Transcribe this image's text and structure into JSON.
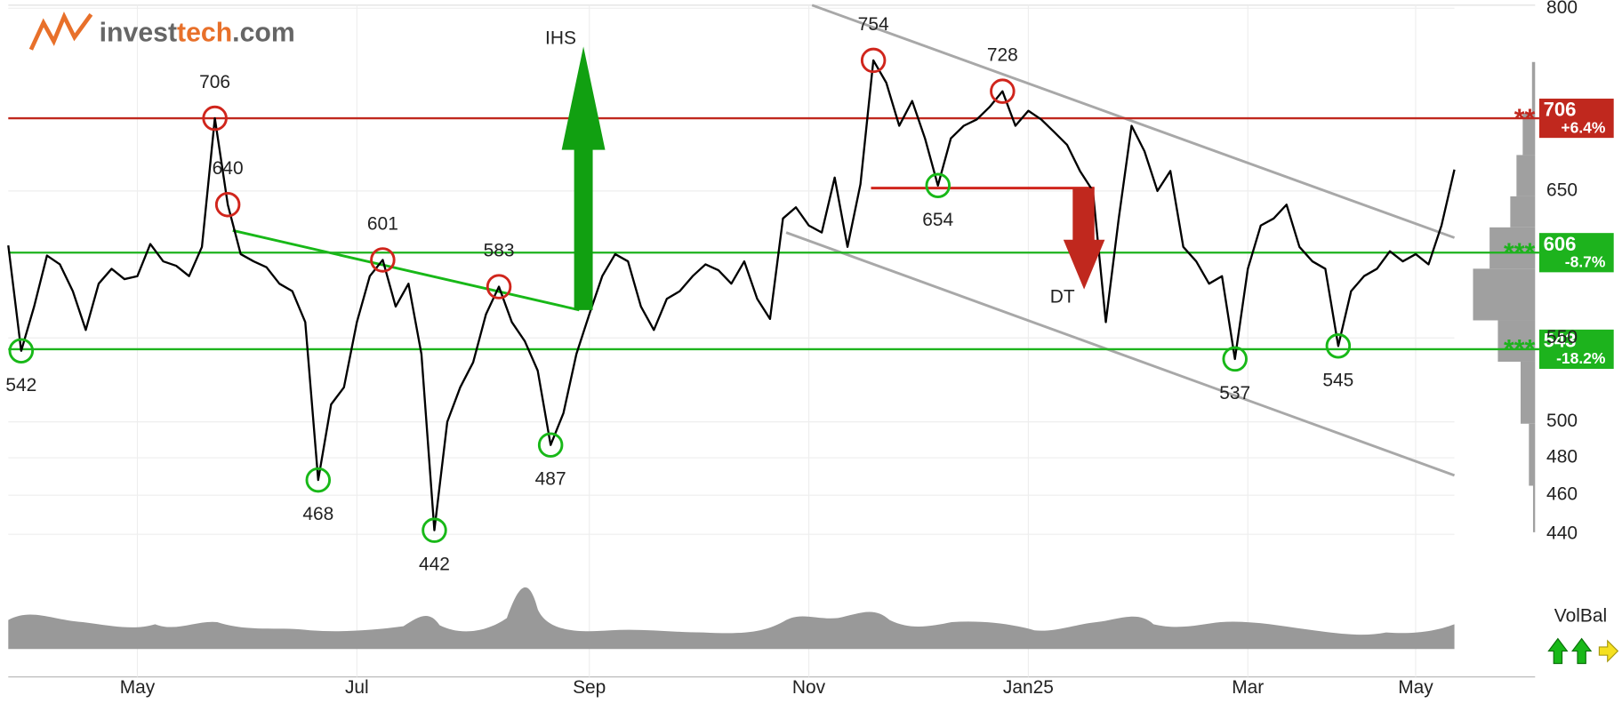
{
  "chart_data": {
    "type": "line",
    "logo_parts": [
      "invest",
      "tech",
      ".com"
    ],
    "categories": [
      null,
      null,
      null,
      null,
      null,
      null,
      null,
      null,
      null,
      null,
      "May",
      null,
      null,
      null,
      null,
      null,
      null,
      null,
      null,
      null,
      null,
      null,
      null,
      null,
      null,
      null,
      null,
      "Jul",
      null,
      null,
      null,
      null,
      null,
      null,
      null,
      null,
      null,
      null,
      null,
      null,
      null,
      null,
      null,
      null,
      null,
      "Sep",
      null,
      null,
      null,
      null,
      null,
      null,
      null,
      null,
      null,
      null,
      null,
      null,
      null,
      null,
      null,
      null,
      "Nov",
      null,
      null,
      null,
      null,
      null,
      null,
      null,
      null,
      null,
      null,
      null,
      null,
      null,
      null,
      null,
      null,
      "Jan25",
      null,
      null,
      null,
      null,
      null,
      null,
      null,
      null,
      null,
      null,
      null,
      null,
      null,
      null,
      null,
      null,
      "Mar",
      null,
      null,
      null,
      null,
      null,
      null,
      null,
      null,
      null,
      null,
      null,
      null,
      "May",
      null,
      null,
      null
    ],
    "series": [
      {
        "color": "#000000",
        "values": [
          611,
          542,
          570,
          604,
          598,
          580,
          555,
          585,
          595,
          588,
          590,
          612,
          600,
          597,
          590,
          610,
          706,
          640,
          605,
          600,
          596,
          585,
          580,
          560,
          468,
          510,
          520,
          560,
          590,
          601,
          570,
          585,
          540,
          442,
          500,
          520,
          535,
          565,
          583,
          560,
          548,
          530,
          487,
          505,
          540,
          565,
          590,
          605,
          600,
          570,
          555,
          575,
          580,
          590,
          598,
          594,
          585,
          600,
          575,
          562,
          630,
          638,
          625,
          620,
          660,
          610,
          655,
          754,
          735,
          700,
          720,
          690,
          654,
          690,
          700,
          705,
          715,
          728,
          700,
          712,
          705,
          695,
          685,
          665,
          650,
          560,
          630,
          700,
          680,
          650,
          665,
          610,
          600,
          585,
          590,
          537,
          595,
          625,
          630,
          640,
          610,
          600,
          595,
          545,
          580,
          590,
          595,
          607,
          600,
          605,
          598,
          625,
          666
        ]
      }
    ],
    "ylim": [
      440,
      800
    ],
    "yticks": [
      440,
      460,
      480,
      500,
      550,
      650,
      800
    ],
    "log_scale": true,
    "grid": true,
    "tops": [
      706,
      601,
      583,
      754,
      728,
      640
    ],
    "bottoms": [
      542,
      468,
      442,
      487,
      654,
      537,
      545
    ],
    "top_color": "#d0251c",
    "bottom_color": "#18b818",
    "levels": [
      {
        "value": 706,
        "stars": "**",
        "change": "+6.4%",
        "color": "#c0281e"
      },
      {
        "value": 606,
        "stars": "***",
        "change": "-8.7%",
        "color": "#1db31d"
      },
      {
        "value": 543,
        "stars": "***",
        "change": "-18.2%",
        "color": "#1db31d"
      }
    ],
    "ihs_label": "IHS",
    "dt_label": "DT",
    "volume_label": "VolBal"
  }
}
